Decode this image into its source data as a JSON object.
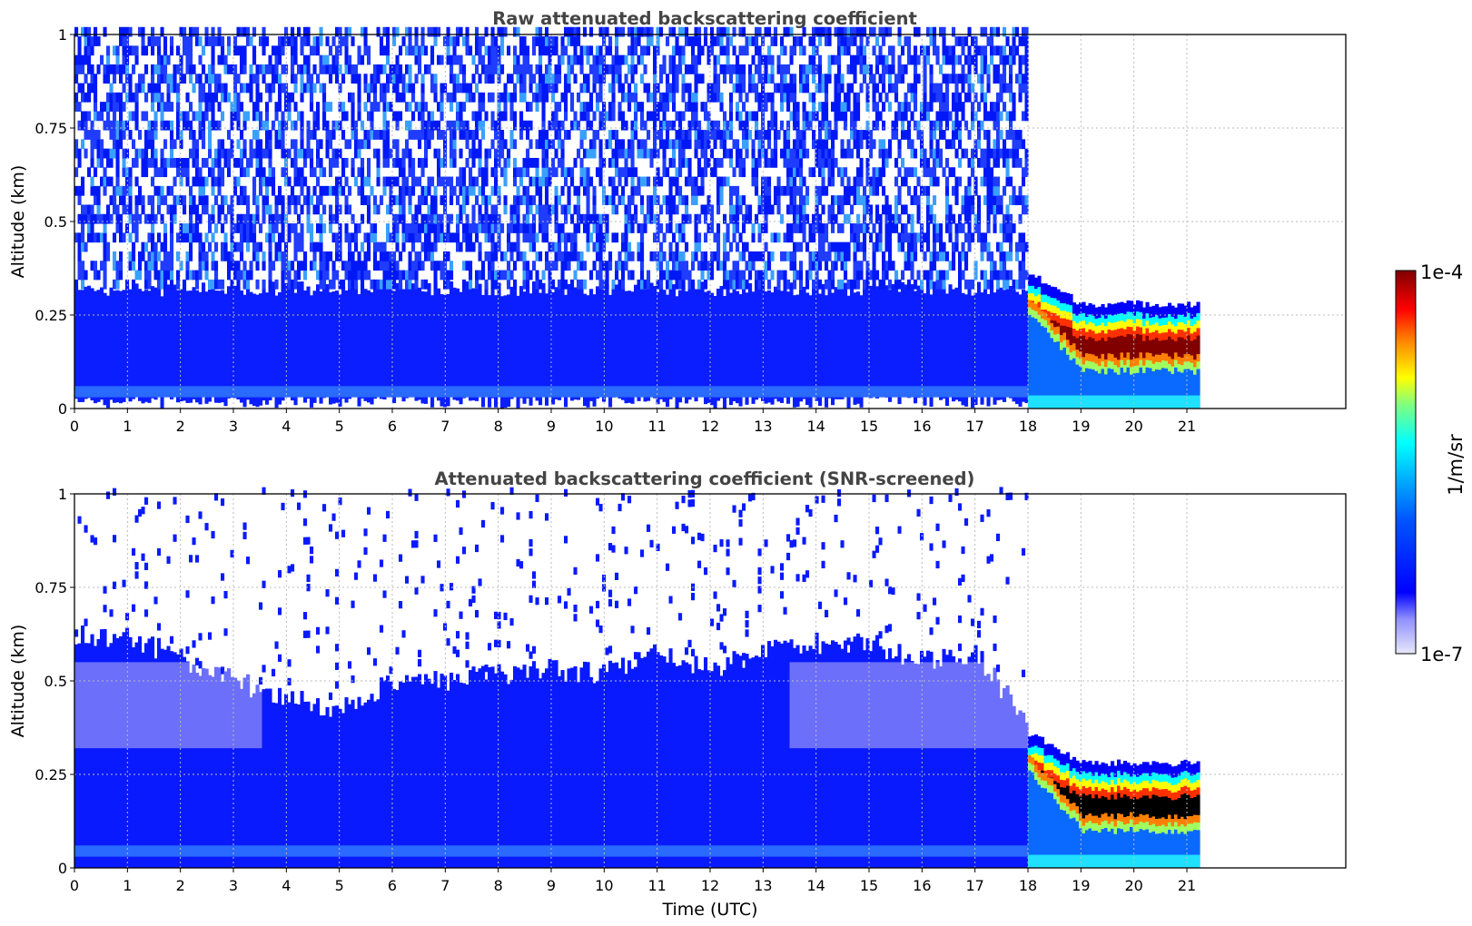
{
  "chart_data": [
    {
      "type": "heatmap",
      "title": "Raw attenuated backscattering coefficient",
      "xlabel": "",
      "ylabel": "Altitude (km)",
      "xlim": [
        0,
        24
      ],
      "ylim": [
        0,
        1
      ],
      "x_ticks": [
        "0",
        "1",
        "2",
        "3",
        "4",
        "5",
        "6",
        "7",
        "8",
        "9",
        "10",
        "11",
        "12",
        "13",
        "14",
        "15",
        "16",
        "17",
        "18",
        "19",
        "20",
        "21"
      ],
      "y_ticks": [
        "0",
        "0.25",
        "0.5",
        "0.75",
        "1"
      ],
      "grid": true,
      "data_time_range": [
        0,
        21.2
      ],
      "regimes": [
        {
          "time_range": [
            0,
            18
          ],
          "altitude_range": [
            0,
            0.3
          ],
          "level": "low",
          "description": "dense blue"
        },
        {
          "time_range": [
            0,
            18
          ],
          "altitude_range": [
            0.3,
            1
          ],
          "level": "low",
          "description": "noisy blue and light blue"
        },
        {
          "time_range": [
            18,
            21.2
          ],
          "altitude_range": [
            0.1,
            0.25
          ],
          "level": "high",
          "value": 0.0001
        },
        {
          "time_range": [
            18,
            21.2
          ],
          "altitude_range": [
            0,
            0.08
          ],
          "level": "low"
        }
      ]
    },
    {
      "type": "heatmap",
      "title": "Attenuated backscattering coefficient (SNR-screened)",
      "xlabel": "Time (UTC)",
      "ylabel": "Altitude (km)",
      "xlim": [
        0,
        24
      ],
      "ylim": [
        0,
        1
      ],
      "x_ticks": [
        "0",
        "1",
        "2",
        "3",
        "4",
        "5",
        "6",
        "7",
        "8",
        "9",
        "10",
        "11",
        "12",
        "13",
        "14",
        "15",
        "16",
        "17",
        "18",
        "19",
        "20",
        "21"
      ],
      "y_ticks": [
        "0",
        "0.25",
        "0.5",
        "0.75",
        "1"
      ],
      "grid": true,
      "data_time_range": [
        0,
        21.2
      ],
      "screened_top_profile": [
        {
          "t": 0,
          "alt": 0.62
        },
        {
          "t": 1,
          "alt": 0.62
        },
        {
          "t": 2,
          "alt": 0.56
        },
        {
          "t": 3,
          "alt": 0.5
        },
        {
          "t": 4,
          "alt": 0.45
        },
        {
          "t": 5,
          "alt": 0.43
        },
        {
          "t": 6,
          "alt": 0.5
        },
        {
          "t": 7,
          "alt": 0.5
        },
        {
          "t": 8,
          "alt": 0.52
        },
        {
          "t": 9,
          "alt": 0.53
        },
        {
          "t": 10,
          "alt": 0.52
        },
        {
          "t": 11,
          "alt": 0.58
        },
        {
          "t": 12,
          "alt": 0.53
        },
        {
          "t": 13,
          "alt": 0.58
        },
        {
          "t": 14,
          "alt": 0.6
        },
        {
          "t": 15,
          "alt": 0.6
        },
        {
          "t": 16,
          "alt": 0.55
        },
        {
          "t": 17,
          "alt": 0.57
        },
        {
          "t": 18,
          "alt": 0.38
        },
        {
          "t": 19,
          "alt": 0.28
        },
        {
          "t": 20,
          "alt": 0.28
        },
        {
          "t": 21.2,
          "alt": 0.3
        }
      ]
    }
  ],
  "colorbar": {
    "label": "1/m/sr",
    "max_label": "1e-4",
    "min_label": "1e-7",
    "scale": "log",
    "range": [
      1e-07,
      0.0001
    ],
    "colors": [
      "#e8e8fa",
      "#0000ff",
      "#00ffff",
      "#ffff00",
      "#ff0000",
      "#800000"
    ],
    "masked_color": "#000000"
  }
}
